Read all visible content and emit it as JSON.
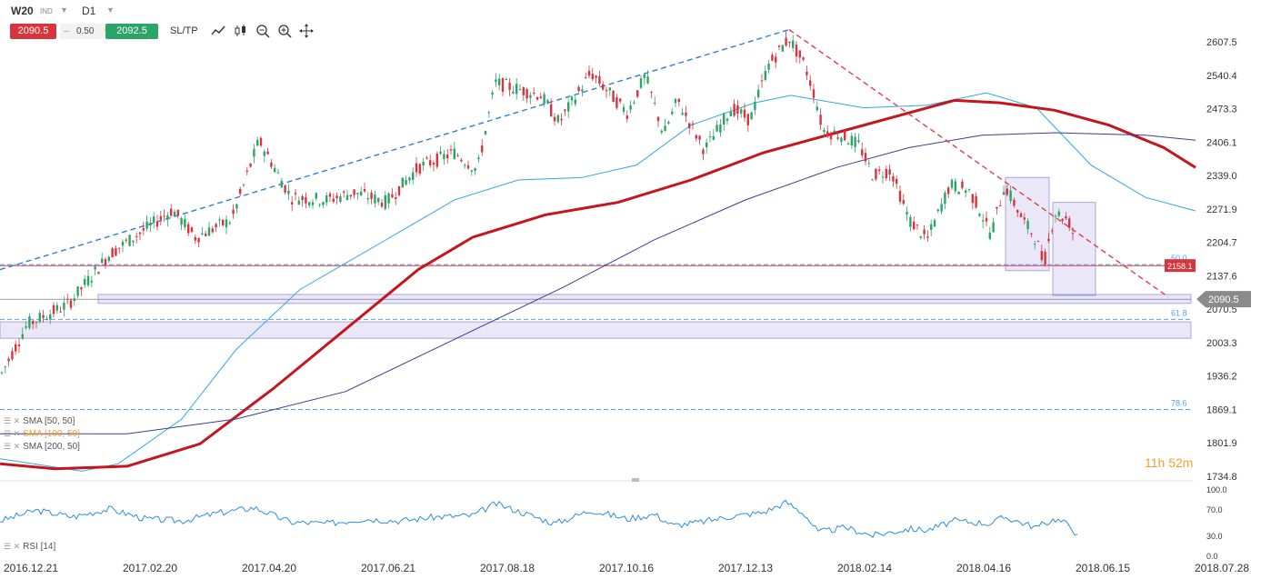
{
  "toolbar": {
    "symbol": "W20",
    "symbol_type": "IND",
    "timeframe": "D1",
    "bid": "2090.5",
    "spread": "0.50",
    "ask": "2092.5",
    "sltp": "SL/TP",
    "tools": [
      "line-chart-icon",
      "candles-icon",
      "zoom-out-icon",
      "zoom-in-icon",
      "crosshair-icon"
    ]
  },
  "indicators": {
    "sma50": "SMA [50, 50]",
    "sma100": "SMA [100, 50]",
    "sma200": "SMA [200, 50]",
    "rsi": "RSI [14]"
  },
  "timer": {
    "hours": "11h",
    "minutes": "52",
    "m": "m"
  },
  "colors": {
    "up": "#2aa567",
    "down": "#d8343e",
    "sma50": "#2ea8e6",
    "sma100": "#c4161c",
    "sma200": "#3a3f8f",
    "zone": "#7b6ed6",
    "trend_up": "#2b7fd9",
    "trend_down": "#e04040",
    "fib": "#5aa0e8",
    "rsi": "#2b8fe0"
  },
  "chart_data": {
    "type": "candlestick",
    "symbol": "W20",
    "timeframe": "D1",
    "y_ticks": [
      "2607.5",
      "2540.4",
      "2473.3",
      "2406.1",
      "2339.0",
      "2271.9",
      "2204.7",
      "2137.6",
      "2070.5",
      "2003.3",
      "1936.2",
      "1869.1",
      "1801.9",
      "1734.8"
    ],
    "y_range": [
      1734.8,
      2640
    ],
    "x_ticks": [
      "2016.12.21",
      "2017.02.20",
      "2017.04.20",
      "2017.06.21",
      "2017.08.18",
      "2017.10.16",
      "2017.12.13",
      "2018.02.14",
      "2018.04.16",
      "2018.06.15",
      "2018.07.28"
    ],
    "price_labels": {
      "current": "2090.5",
      "level": "2158.1"
    },
    "fib_levels": [
      {
        "label": "50.0",
        "value": 2160
      },
      {
        "label": "61.8",
        "value": 2050
      },
      {
        "label": "78.6",
        "value": 1869
      }
    ],
    "rsi_ticks": [
      "100.0",
      "70.0",
      "30.0",
      "0.0"
    ],
    "anchors": [
      {
        "x": 0,
        "y": 1935
      },
      {
        "x": 30,
        "y": 2040
      },
      {
        "x": 75,
        "y": 2080
      },
      {
        "x": 120,
        "y": 2180
      },
      {
        "x": 190,
        "y": 2270
      },
      {
        "x": 215,
        "y": 2215
      },
      {
        "x": 255,
        "y": 2250
      },
      {
        "x": 285,
        "y": 2410
      },
      {
        "x": 320,
        "y": 2295
      },
      {
        "x": 360,
        "y": 2290
      },
      {
        "x": 390,
        "y": 2305
      },
      {
        "x": 425,
        "y": 2285
      },
      {
        "x": 460,
        "y": 2355
      },
      {
        "x": 500,
        "y": 2385
      },
      {
        "x": 525,
        "y": 2350
      },
      {
        "x": 545,
        "y": 2525
      },
      {
        "x": 595,
        "y": 2500
      },
      {
        "x": 615,
        "y": 2445
      },
      {
        "x": 650,
        "y": 2545
      },
      {
        "x": 690,
        "y": 2465
      },
      {
        "x": 710,
        "y": 2540
      },
      {
        "x": 730,
        "y": 2420
      },
      {
        "x": 745,
        "y": 2490
      },
      {
        "x": 775,
        "y": 2390
      },
      {
        "x": 805,
        "y": 2475
      },
      {
        "x": 825,
        "y": 2450
      },
      {
        "x": 845,
        "y": 2560
      },
      {
        "x": 868,
        "y": 2615
      },
      {
        "x": 885,
        "y": 2560
      },
      {
        "x": 897,
        "y": 2495
      },
      {
        "x": 905,
        "y": 2430
      },
      {
        "x": 925,
        "y": 2420
      },
      {
        "x": 945,
        "y": 2400
      },
      {
        "x": 960,
        "y": 2340
      },
      {
        "x": 980,
        "y": 2350
      },
      {
        "x": 1000,
        "y": 2250
      },
      {
        "x": 1020,
        "y": 2210
      },
      {
        "x": 1045,
        "y": 2320
      },
      {
        "x": 1065,
        "y": 2310
      },
      {
        "x": 1075,
        "y": 2280
      },
      {
        "x": 1090,
        "y": 2220
      },
      {
        "x": 1105,
        "y": 2320
      },
      {
        "x": 1125,
        "y": 2250
      },
      {
        "x": 1140,
        "y": 2210
      },
      {
        "x": 1148,
        "y": 2160
      },
      {
        "x": 1160,
        "y": 2265
      },
      {
        "x": 1175,
        "y": 2250
      },
      {
        "x": 1180,
        "y": 2225
      },
      {
        "x": 1183,
        "y": 2085
      }
    ],
    "series": [
      {
        "name": "SMA [50, 50]",
        "points": [
          {
            "x": 0,
            "y": 1770
          },
          {
            "x": 90,
            "y": 1745
          },
          {
            "x": 130,
            "y": 1760
          },
          {
            "x": 200,
            "y": 1850
          },
          {
            "x": 260,
            "y": 1990
          },
          {
            "x": 330,
            "y": 2110
          },
          {
            "x": 420,
            "y": 2205
          },
          {
            "x": 500,
            "y": 2290
          },
          {
            "x": 570,
            "y": 2330
          },
          {
            "x": 640,
            "y": 2335
          },
          {
            "x": 700,
            "y": 2360
          },
          {
            "x": 760,
            "y": 2440
          },
          {
            "x": 830,
            "y": 2485
          },
          {
            "x": 870,
            "y": 2500
          },
          {
            "x": 950,
            "y": 2475
          },
          {
            "x": 1020,
            "y": 2480
          },
          {
            "x": 1085,
            "y": 2505
          },
          {
            "x": 1140,
            "y": 2475
          },
          {
            "x": 1200,
            "y": 2360
          },
          {
            "x": 1260,
            "y": 2295
          },
          {
            "x": 1315,
            "y": 2268
          }
        ]
      },
      {
        "name": "SMA [100, 50]",
        "points": [
          {
            "x": 0,
            "y": 1760
          },
          {
            "x": 60,
            "y": 1750
          },
          {
            "x": 140,
            "y": 1755
          },
          {
            "x": 220,
            "y": 1800
          },
          {
            "x": 300,
            "y": 1910
          },
          {
            "x": 380,
            "y": 2030
          },
          {
            "x": 460,
            "y": 2150
          },
          {
            "x": 520,
            "y": 2215
          },
          {
            "x": 600,
            "y": 2260
          },
          {
            "x": 680,
            "y": 2285
          },
          {
            "x": 760,
            "y": 2330
          },
          {
            "x": 840,
            "y": 2385
          },
          {
            "x": 920,
            "y": 2425
          },
          {
            "x": 990,
            "y": 2460
          },
          {
            "x": 1050,
            "y": 2490
          },
          {
            "x": 1100,
            "y": 2485
          },
          {
            "x": 1160,
            "y": 2470
          },
          {
            "x": 1220,
            "y": 2440
          },
          {
            "x": 1280,
            "y": 2395
          },
          {
            "x": 1315,
            "y": 2355
          }
        ]
      },
      {
        "name": "SMA [200, 50]",
        "points": [
          {
            "x": 0,
            "y": 1820
          },
          {
            "x": 140,
            "y": 1820
          },
          {
            "x": 260,
            "y": 1850
          },
          {
            "x": 380,
            "y": 1905
          },
          {
            "x": 500,
            "y": 2010
          },
          {
            "x": 620,
            "y": 2115
          },
          {
            "x": 720,
            "y": 2210
          },
          {
            "x": 820,
            "y": 2290
          },
          {
            "x": 920,
            "y": 2355
          },
          {
            "x": 1000,
            "y": 2395
          },
          {
            "x": 1080,
            "y": 2420
          },
          {
            "x": 1160,
            "y": 2425
          },
          {
            "x": 1260,
            "y": 2420
          },
          {
            "x": 1315,
            "y": 2410
          }
        ]
      }
    ],
    "trendlines": [
      {
        "name": "uptrend",
        "from": {
          "x": 0,
          "y": 2150
        },
        "to": {
          "x": 868,
          "y": 2632
        }
      },
      {
        "name": "downtrend",
        "from": {
          "x": 868,
          "y": 2632
        },
        "to": {
          "x": 1285,
          "y": 2095
        }
      }
    ],
    "zones": [
      {
        "x0": 108,
        "x1": 1310,
        "y0": 2082,
        "y1": 2100
      },
      {
        "x0": 0,
        "x1": 1310,
        "y0": 2012,
        "y1": 2045
      },
      {
        "x0": 1106,
        "x1": 1154,
        "y0": 2148,
        "y1": 2335
      },
      {
        "x0": 1158,
        "x1": 1205,
        "y0": 2098,
        "y1": 2285
      }
    ],
    "rsi_points": [
      {
        "x": 0,
        "y": 52
      },
      {
        "x": 40,
        "y": 68
      },
      {
        "x": 80,
        "y": 58
      },
      {
        "x": 120,
        "y": 70
      },
      {
        "x": 160,
        "y": 55
      },
      {
        "x": 200,
        "y": 52
      },
      {
        "x": 240,
        "y": 64
      },
      {
        "x": 280,
        "y": 72
      },
      {
        "x": 320,
        "y": 50
      },
      {
        "x": 360,
        "y": 48
      },
      {
        "x": 400,
        "y": 55
      },
      {
        "x": 440,
        "y": 52
      },
      {
        "x": 480,
        "y": 58
      },
      {
        "x": 520,
        "y": 60
      },
      {
        "x": 545,
        "y": 78
      },
      {
        "x": 580,
        "y": 62
      },
      {
        "x": 610,
        "y": 48
      },
      {
        "x": 650,
        "y": 68
      },
      {
        "x": 690,
        "y": 55
      },
      {
        "x": 720,
        "y": 62
      },
      {
        "x": 740,
        "y": 45
      },
      {
        "x": 770,
        "y": 50
      },
      {
        "x": 800,
        "y": 58
      },
      {
        "x": 840,
        "y": 65
      },
      {
        "x": 865,
        "y": 80
      },
      {
        "x": 885,
        "y": 62
      },
      {
        "x": 900,
        "y": 35
      },
      {
        "x": 930,
        "y": 42
      },
      {
        "x": 960,
        "y": 30
      },
      {
        "x": 1000,
        "y": 40
      },
      {
        "x": 1020,
        "y": 38
      },
      {
        "x": 1050,
        "y": 52
      },
      {
        "x": 1090,
        "y": 48
      },
      {
        "x": 1105,
        "y": 58
      },
      {
        "x": 1140,
        "y": 42
      },
      {
        "x": 1160,
        "y": 55
      },
      {
        "x": 1178,
        "y": 45
      },
      {
        "x": 1185,
        "y": 28
      }
    ]
  }
}
